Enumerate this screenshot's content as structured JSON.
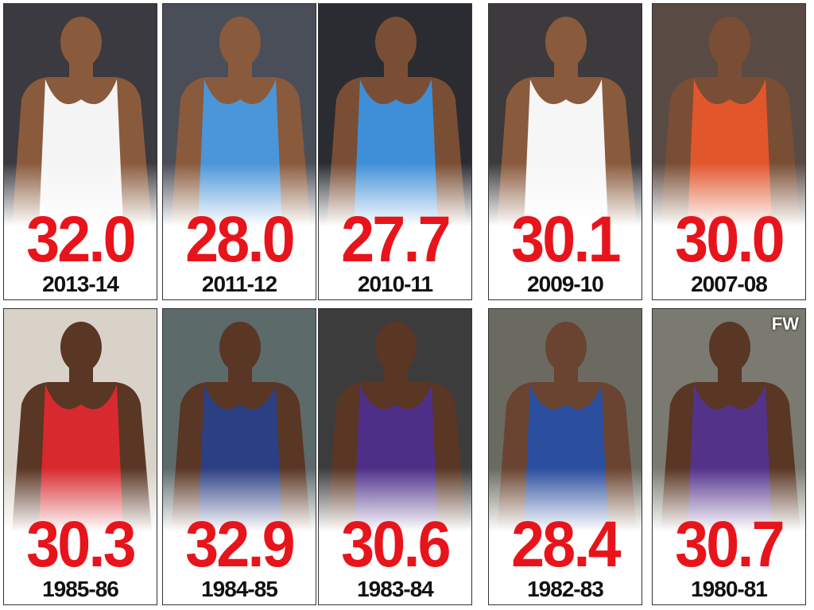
{
  "cards": [
    {
      "value": "32.0",
      "season": "2013-14"
    },
    {
      "value": "28.0",
      "season": "2011-12"
    },
    {
      "value": "27.7",
      "season": "2010-11"
    },
    {
      "value": "30.1",
      "season": "2009-10"
    },
    {
      "value": "30.0",
      "season": "2007-08"
    },
    {
      "value": "30.3",
      "season": "1985-86"
    },
    {
      "value": "32.9",
      "season": "1984-85"
    },
    {
      "value": "30.6",
      "season": "1983-84"
    },
    {
      "value": "28.4",
      "season": "1982-83"
    },
    {
      "value": "30.7",
      "season": "1980-81"
    }
  ],
  "watermark": "FW"
}
